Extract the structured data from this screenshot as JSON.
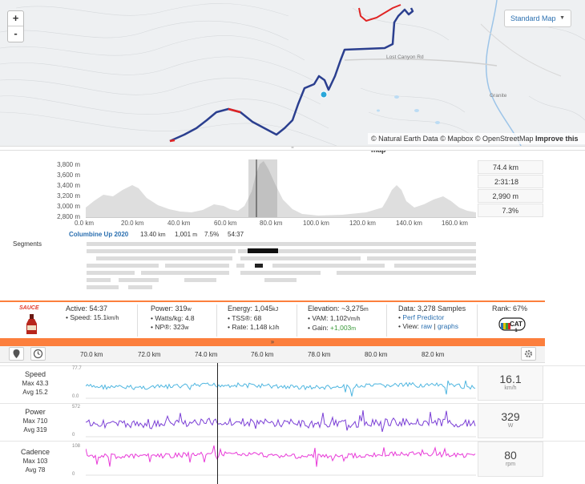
{
  "map": {
    "zoom_in": "+",
    "zoom_out": "-",
    "style_selector": "Standard Map",
    "road_label": "Lost Canyon Rd",
    "town_label": "Granite",
    "attribution": {
      "natural_earth": "© Natural Earth Data",
      "mapbox": "© Mapbox",
      "osm": "© OpenStreetMap",
      "improve": "Improve this map"
    },
    "colors": {
      "route": "#2b3f8f",
      "climb": "#e02424",
      "marker": "#2aa7d9"
    }
  },
  "elevation": {
    "y_ticks": [
      "3,800 m",
      "3,600 m",
      "3,400 m",
      "3,200 m",
      "3,000 m",
      "2,800 m"
    ],
    "x_ticks": [
      "0.0 km",
      "20.0 km",
      "40.0 km",
      "60.0 km",
      "80.0 km",
      "100.0 km",
      "120.0 km",
      "140.0 km",
      "160.0 km"
    ],
    "stats": [
      "74.4 km",
      "2:31:18",
      "2,990 m",
      "7.3%"
    ],
    "segment": {
      "name": "Columbine Up 2020",
      "distance": "13.40",
      "distance_unit": "km",
      "elevation": "1,001",
      "elevation_unit": "m",
      "grade": "7.5%",
      "time": "54:37"
    },
    "segments_label": "Segments"
  },
  "stats": {
    "sauce_logo": "SAUCE",
    "active": {
      "label": "Active:",
      "value": "54:37",
      "speed_label": "Speed:",
      "speed_value": "15.1",
      "speed_unit": "km/h"
    },
    "power": {
      "label": "Power:",
      "value": "319",
      "unit": "w",
      "wkg_label": "Watts/kg:",
      "wkg_value": "4.8",
      "np_label": "NP®:",
      "np_value": "323",
      "np_unit": "w"
    },
    "energy": {
      "label": "Energy:",
      "value": "1,045",
      "unit": "kJ",
      "tss_label": "TSS®:",
      "tss_value": "68",
      "rate_label": "Rate:",
      "rate_value": "1,148",
      "rate_unit": "kJ/h"
    },
    "elevation": {
      "label": "Elevation:",
      "value": "~3,275",
      "unit": "m",
      "vam_label": "VAM:",
      "vam_value": "1,102",
      "vam_unit": "Vm/h",
      "gain_label": "Gain:",
      "gain_value": "+1,003",
      "gain_unit": "m"
    },
    "data": {
      "label": "Data:",
      "value": "3,278 Samples",
      "predictor": "Perf Predictor",
      "view_label": "View:",
      "raw": "raw",
      "sep": "|",
      "graphs": "graphs"
    },
    "rank": {
      "label": "Rank:",
      "value": "67%",
      "badge": "CAT",
      "badge_num": "1"
    },
    "collapse": "»"
  },
  "streams": {
    "x_ticks": [
      "70.0 km",
      "72.0 km",
      "74.0 km",
      "76.0 km",
      "78.0 km",
      "80.0 km",
      "82.0 km"
    ],
    "rows": [
      {
        "name": "Speed",
        "max_label": "Max",
        "max": "43.3",
        "avg_label": "Avg",
        "avg": "15.2",
        "ymax": "77.7",
        "ymin": "0.0",
        "value": "16.1",
        "unit": "km/h",
        "color": "#4fb6e0"
      },
      {
        "name": "Power",
        "max_label": "Max",
        "max": "710",
        "avg_label": "Avg",
        "avg": "319",
        "ymax": "572",
        "ymin": "0",
        "value": "329",
        "unit": "W",
        "color": "#7b3fd6"
      },
      {
        "name": "Cadence",
        "max_label": "Max",
        "max": "103",
        "avg_label": "Avg",
        "avg": "78",
        "ymax": "108",
        "ymin": "0",
        "value": "80",
        "unit": "rpm",
        "color": "#e83ad8"
      }
    ]
  }
}
